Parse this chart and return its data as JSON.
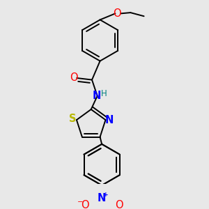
{
  "bg_color": "#e8e8e8",
  "lw": 1.4,
  "font_size": 9.5,
  "atom_colors": {
    "O": "#ff0000",
    "N": "#0000ff",
    "S": "#b8b800",
    "H": "#008080"
  }
}
